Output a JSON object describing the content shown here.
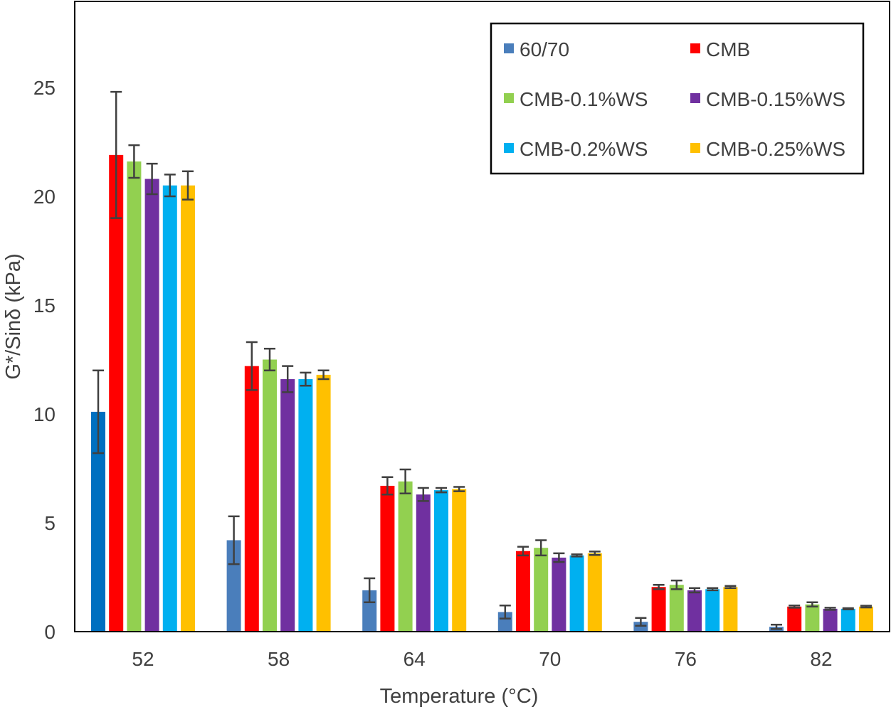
{
  "chart_data": {
    "type": "bar",
    "title": "",
    "xlabel": "Temperature (°C)",
    "ylabel": "G*/Sinδ (kPa)",
    "ylim": [
      0,
      28
    ],
    "yticks": [
      "0",
      "5",
      "10",
      "15",
      "20",
      "25"
    ],
    "categories": [
      "52",
      "58",
      "64",
      "70",
      "76",
      "82"
    ],
    "grid": false,
    "legend_position": "top-right",
    "error_bars": true,
    "series": [
      {
        "name": "60/70",
        "color": "#4A7EBB",
        "values": [
          10.1,
          4.2,
          1.9,
          0.9,
          0.45,
          0.22
        ],
        "errors": [
          1.9,
          1.1,
          0.55,
          0.3,
          0.18,
          0.1
        ]
      },
      {
        "name": "CMB",
        "color": "#FF0000",
        "values": [
          21.9,
          12.2,
          6.7,
          3.7,
          2.05,
          1.15
        ],
        "errors": [
          2.9,
          1.1,
          0.4,
          0.2,
          0.1,
          0.05
        ]
      },
      {
        "name": "CMB-0.1%WS",
        "color": "#92D050",
        "values": [
          21.6,
          12.5,
          6.9,
          3.85,
          2.15,
          1.25
        ],
        "errors": [
          0.75,
          0.5,
          0.55,
          0.35,
          0.2,
          0.1
        ]
      },
      {
        "name": "CMB-0.15%WS",
        "color": "#7030A0",
        "values": [
          20.8,
          11.6,
          6.3,
          3.4,
          1.9,
          1.05
        ],
        "errors": [
          0.7,
          0.6,
          0.3,
          0.2,
          0.1,
          0.05
        ]
      },
      {
        "name": "CMB-0.2%WS",
        "color": "#00B0F0",
        "values": [
          20.5,
          11.6,
          6.5,
          3.5,
          1.95,
          1.05
        ],
        "errors": [
          0.5,
          0.3,
          0.1,
          0.05,
          0.05,
          0.03
        ]
      },
      {
        "name": "CMB-0.25%WS",
        "color": "#FFC000",
        "values": [
          20.5,
          11.8,
          6.55,
          3.6,
          2.05,
          1.15
        ],
        "errors": [
          0.65,
          0.2,
          0.1,
          0.08,
          0.05,
          0.04
        ]
      }
    ]
  }
}
